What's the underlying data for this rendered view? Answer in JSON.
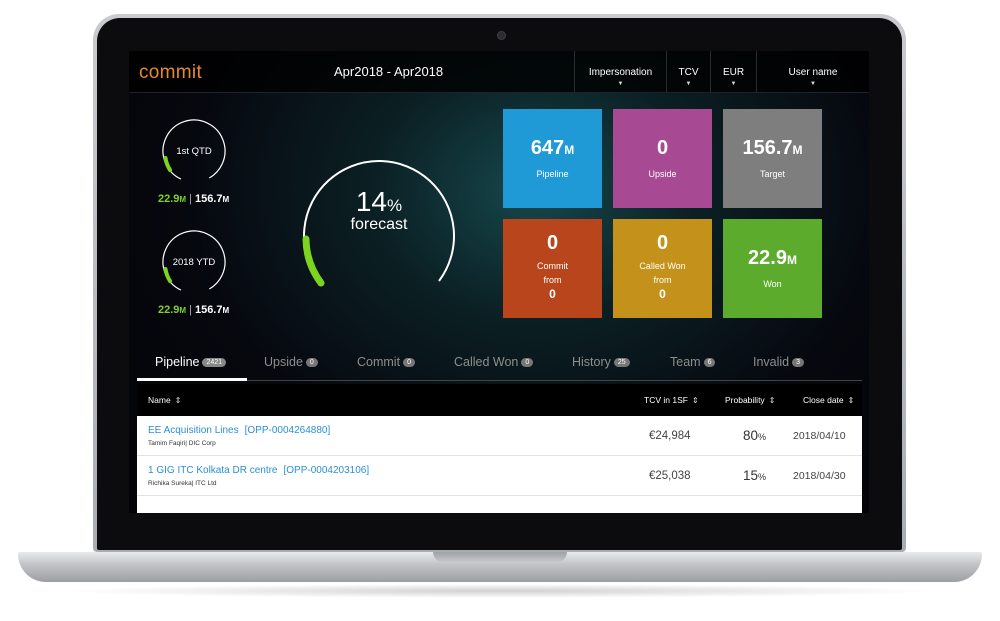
{
  "app": {
    "logo": "commit",
    "period": "Apr2018 - Apr2018"
  },
  "topbar": {
    "impersonation": "Impersonation",
    "tcv": "TCV",
    "currency": "EUR",
    "user": "User name"
  },
  "gauges": {
    "qtd": {
      "label": "1st QTD",
      "won": "22.9",
      "won_unit": "M",
      "target": "156.7",
      "target_unit": "M"
    },
    "ytd": {
      "label": "2018 YTD",
      "won": "22.9",
      "won_unit": "M",
      "target": "156.7",
      "target_unit": "M"
    },
    "forecast": {
      "value": "14",
      "unit": "%",
      "label": "forecast",
      "progress": 0.14
    }
  },
  "tiles": {
    "pipeline": {
      "value": "647",
      "unit": "M",
      "label": "Pipeline",
      "color": "#1f9ad6"
    },
    "upside": {
      "value": "0",
      "label": "Upside",
      "color": "#a74a93"
    },
    "target": {
      "value": "156.7",
      "unit": "M",
      "label": "Target",
      "color": "#7e7e7e"
    },
    "commit": {
      "value": "0",
      "label1": "Commit",
      "label2": "from",
      "sub": "0",
      "color": "#b9451d"
    },
    "called_won": {
      "value": "0",
      "label1": "Called Won",
      "label2": "from",
      "sub": "0",
      "color": "#c4921a"
    },
    "won": {
      "value": "22.9",
      "unit": "M",
      "label": "Won",
      "color": "#5cab2c"
    }
  },
  "tabs": [
    {
      "label": "Pipeline",
      "count": "2421"
    },
    {
      "label": "Upside",
      "count": "0"
    },
    {
      "label": "Commit",
      "count": "0"
    },
    {
      "label": "Called Won",
      "count": "0"
    },
    {
      "label": "History",
      "count": "25"
    },
    {
      "label": "Team",
      "count": "6"
    },
    {
      "label": "Invalid",
      "count": "3"
    }
  ],
  "table": {
    "headers": {
      "name": "Name",
      "tcv": "TCV in 1SF",
      "probability": "Probability",
      "close": "Close date"
    },
    "rows": [
      {
        "name": "EE Acquisition Lines",
        "opp": "[OPP-0004264880]",
        "owner": "Tamim Faqiri| DIC Corp",
        "tcv": "€24,984",
        "prob": "80",
        "prob_unit": "%",
        "close": "2018/04/10"
      },
      {
        "name": "1 GIG ITC Kolkata DR centre",
        "opp": "[OPP-0004203106]",
        "owner": "Richika Sureka| ITC Ltd",
        "tcv": "€25,038",
        "prob": "15",
        "prob_unit": "%",
        "close": "2018/04/30"
      }
    ]
  }
}
